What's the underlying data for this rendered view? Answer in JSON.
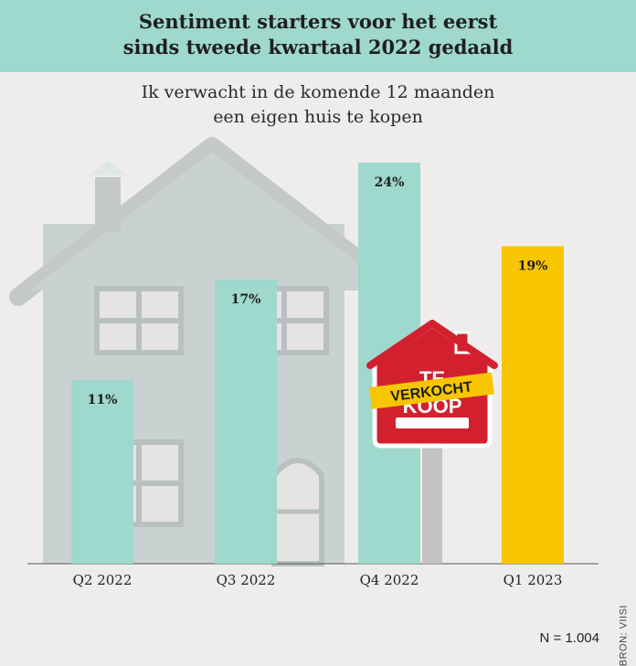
{
  "header": {
    "title_line1": "Sentiment starters voor het eerst",
    "title_line2": "sinds tweede kwartaal 2022 gedaald"
  },
  "chart_data": {
    "type": "bar",
    "title": "Sentiment starters voor het eerst sinds tweede kwartaal 2022 gedaald",
    "subtitle": "Ik verwacht in de komende 12 maanden een eigen huis te kopen",
    "categories": [
      "Q2 2022",
      "Q3 2022",
      "Q4 2022",
      "Q1 2023"
    ],
    "values": [
      11,
      17,
      24,
      19
    ],
    "value_labels": [
      "11%",
      "17%",
      "24%",
      "19%"
    ],
    "unit": "%",
    "ylim": [
      0,
      24
    ],
    "grid": false,
    "bar_colors": [
      "#9fd8cc",
      "#9fd8cc",
      "#9fd8cc",
      "#f7c600"
    ]
  },
  "subtitle_line1": "Ik verwacht in de komende 12 maanden",
  "subtitle_line2": "een eigen huis te kopen",
  "illustration": {
    "sign_text_top": "TE",
    "sign_text_bottom": "KOOP",
    "sticker_text": "VERKOCHT",
    "sign_color": "#d3202f",
    "sticker_color": "#f7c600"
  },
  "footer": {
    "sample_size": "N = 1.004",
    "source": "BRON: VIISI"
  },
  "colors": {
    "header_bg": "#9fd8cc",
    "background": "#efedeb",
    "bar_default": "#9fd8cc",
    "bar_highlight": "#f7c600"
  }
}
